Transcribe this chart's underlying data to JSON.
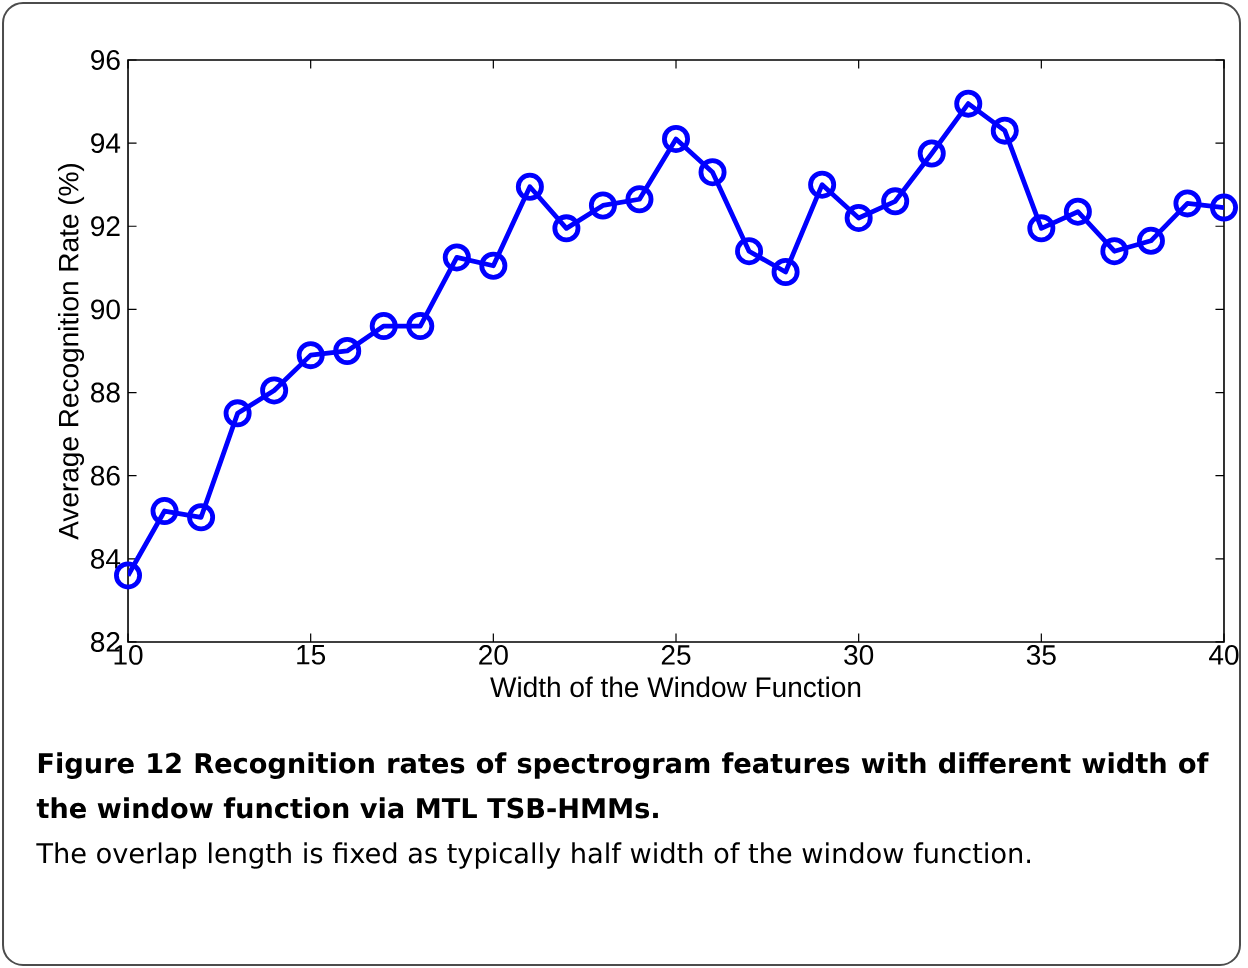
{
  "chart_data": {
    "type": "line",
    "xlabel": "Width of the Window Function",
    "ylabel": "Average Recognition Rate (%)",
    "annotations": [
      "Figure 12 Recognition rates of spectrogram features with different width of the window function via MTL TSB-HMMs.",
      "The overlap length is fixed as typically half width of the window function."
    ],
    "x": [
      10,
      11,
      12,
      13,
      14,
      15,
      16,
      17,
      18,
      19,
      20,
      21,
      22,
      23,
      24,
      25,
      26,
      27,
      28,
      29,
      30,
      31,
      32,
      33,
      34,
      35,
      36,
      37,
      38,
      39,
      40
    ],
    "series": [
      {
        "color": "#0000ff",
        "values": [
          83.6,
          85.15,
          85.0,
          87.5,
          88.05,
          88.9,
          89.0,
          89.6,
          89.6,
          91.25,
          91.05,
          92.95,
          91.95,
          92.5,
          92.65,
          94.1,
          93.3,
          91.4,
          90.9,
          93.0,
          92.2,
          92.6,
          93.75,
          94.95,
          94.3,
          91.95,
          92.35,
          91.4,
          91.65,
          92.55,
          92.45
        ]
      }
    ],
    "xlim": [
      10,
      40
    ],
    "ylim": [
      82,
      96
    ],
    "xticks": [
      10,
      15,
      20,
      25,
      30,
      35,
      40
    ],
    "yticks": [
      82,
      84,
      86,
      88,
      90,
      92,
      94,
      96
    ],
    "marker": "circle",
    "line_style": "solid",
    "grid": false
  }
}
